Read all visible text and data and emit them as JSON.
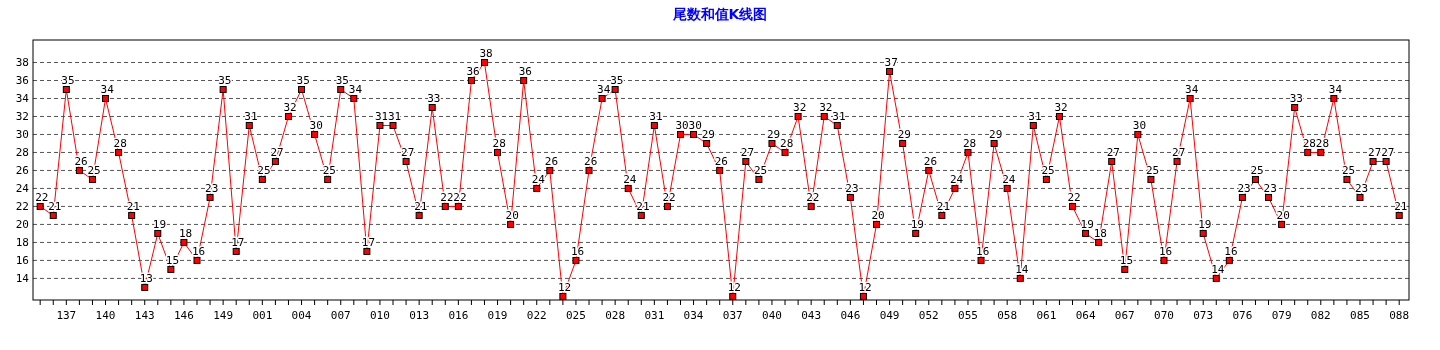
{
  "chart_data": {
    "type": "line",
    "title": "尾数和值K线图",
    "categories": [
      null,
      null,
      "137",
      null,
      null,
      "140",
      null,
      null,
      "143",
      null,
      null,
      "146",
      null,
      null,
      "149",
      null,
      null,
      "001",
      null,
      null,
      "004",
      null,
      null,
      "007",
      null,
      null,
      "010",
      null,
      null,
      "013",
      null,
      null,
      "016",
      null,
      null,
      "019",
      null,
      null,
      "022",
      null,
      null,
      "025",
      null,
      null,
      "028",
      null,
      null,
      "031",
      null,
      null,
      "034",
      null,
      null,
      "037",
      null,
      null,
      "040",
      null,
      null,
      "043",
      null,
      null,
      "046",
      null,
      null,
      "049",
      null,
      null,
      "052",
      null,
      null,
      "055",
      null,
      null,
      "058",
      null,
      null,
      "061",
      null,
      null,
      "064",
      null,
      null,
      "067",
      null,
      null,
      "070",
      null,
      null,
      "073",
      null,
      null,
      "076",
      null,
      null,
      "079",
      null,
      null,
      "082",
      null,
      null,
      "085",
      null,
      null,
      "088"
    ],
    "series": [
      {
        "color": "#ff0000",
        "values": [
          22,
          21,
          35,
          26,
          25,
          34,
          28,
          21,
          13,
          19,
          15,
          18,
          16,
          23,
          35,
          17,
          31,
          25,
          27,
          32,
          35,
          30,
          25,
          35,
          34,
          17,
          31,
          31,
          27,
          21,
          33,
          22,
          22,
          36,
          38,
          28,
          20,
          36,
          24,
          26,
          12,
          16,
          26,
          34,
          35,
          24,
          21,
          31,
          22,
          30,
          30,
          29,
          26,
          12,
          27,
          25,
          29,
          28,
          32,
          22,
          32,
          31,
          23,
          12,
          20,
          37,
          29,
          19,
          26,
          21,
          24,
          28,
          16,
          29,
          24,
          14,
          31,
          25,
          32,
          22,
          19,
          18,
          27,
          15,
          30,
          25,
          16,
          27,
          34,
          19,
          14,
          16,
          23,
          25,
          23,
          20,
          33,
          28,
          28,
          34,
          25,
          23,
          27,
          27,
          21
        ]
      }
    ],
    "ylim": [
      11.6,
      40.5
    ],
    "yticks": [
      14,
      16,
      18,
      20,
      22,
      24,
      26,
      28,
      30,
      32,
      34,
      36,
      38
    ],
    "grid": "y",
    "marker": "square",
    "line_style": "solid",
    "data_labels": true
  }
}
